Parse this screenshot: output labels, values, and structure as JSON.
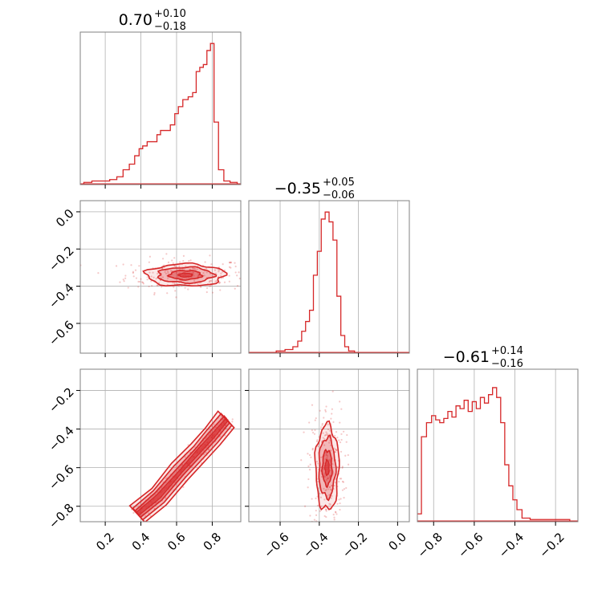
{
  "chart_data": {
    "type": "corner",
    "color": "#d62728",
    "grid": true,
    "panels": [
      {
        "id": "hist-0",
        "row": 0,
        "col": 0,
        "type": "histogram",
        "title": {
          "value": "0.70",
          "upper": "+0.10",
          "lower": "−0.18"
        },
        "xlim": [
          0.06,
          0.96
        ],
        "x_ticks": [
          0.2,
          0.4,
          0.6,
          0.8
        ],
        "x_tick_labels": [],
        "y_tick_labels": [],
        "bins": [
          [
            0.1,
            0.01
          ],
          [
            0.15,
            0.02
          ],
          [
            0.2,
            0.02
          ],
          [
            0.25,
            0.03
          ],
          [
            0.28,
            0.05
          ],
          [
            0.32,
            0.1
          ],
          [
            0.35,
            0.14
          ],
          [
            0.38,
            0.2
          ],
          [
            0.4,
            0.25
          ],
          [
            0.42,
            0.27
          ],
          [
            0.45,
            0.3
          ],
          [
            0.48,
            0.3
          ],
          [
            0.5,
            0.35
          ],
          [
            0.52,
            0.38
          ],
          [
            0.55,
            0.38
          ],
          [
            0.58,
            0.42
          ],
          [
            0.6,
            0.5
          ],
          [
            0.62,
            0.55
          ],
          [
            0.65,
            0.6
          ],
          [
            0.68,
            0.62
          ],
          [
            0.7,
            0.65
          ],
          [
            0.72,
            0.8
          ],
          [
            0.74,
            0.83
          ],
          [
            0.76,
            0.85
          ],
          [
            0.78,
            0.95
          ],
          [
            0.8,
            1.0
          ],
          [
            0.82,
            0.44
          ],
          [
            0.85,
            0.1
          ],
          [
            0.88,
            0.02
          ],
          [
            0.92,
            0.01
          ]
        ]
      },
      {
        "id": "scatter-10",
        "row": 1,
        "col": 0,
        "type": "density",
        "xlim": [
          0.06,
          0.96
        ],
        "ylim": [
          -0.76,
          0.06
        ],
        "x_ticks": [
          0.2,
          0.4,
          0.6,
          0.8
        ],
        "y_ticks": [
          0.0,
          -0.2,
          -0.4,
          -0.6
        ],
        "x_tick_labels": [],
        "y_tick_labels": [
          "0.0",
          "−0.2",
          "−0.4",
          "−0.6"
        ],
        "center": [
          0.65,
          -0.34
        ],
        "spread": [
          0.13,
          0.035
        ]
      },
      {
        "id": "hist-1",
        "row": 1,
        "col": 1,
        "type": "histogram",
        "title": {
          "value": "−0.35",
          "upper": "+0.05",
          "lower": "−0.06"
        },
        "xlim": [
          -0.76,
          0.06
        ],
        "x_ticks": [
          -0.6,
          -0.4,
          -0.2,
          0.0
        ],
        "x_tick_labels": [],
        "y_tick_labels": [],
        "bins": [
          [
            -0.6,
            0.01
          ],
          [
            -0.55,
            0.02
          ],
          [
            -0.52,
            0.04
          ],
          [
            -0.5,
            0.08
          ],
          [
            -0.48,
            0.15
          ],
          [
            -0.46,
            0.22
          ],
          [
            -0.44,
            0.3
          ],
          [
            -0.42,
            0.55
          ],
          [
            -0.4,
            0.72
          ],
          [
            -0.38,
            0.95
          ],
          [
            -0.36,
            1.0
          ],
          [
            -0.34,
            0.93
          ],
          [
            -0.32,
            0.8
          ],
          [
            -0.3,
            0.4
          ],
          [
            -0.28,
            0.12
          ],
          [
            -0.26,
            0.04
          ],
          [
            -0.24,
            0.01
          ]
        ]
      },
      {
        "id": "scatter-20",
        "row": 2,
        "col": 0,
        "type": "density",
        "xlim": [
          0.06,
          0.96
        ],
        "ylim": [
          -0.88,
          -0.09
        ],
        "x_ticks": [
          0.2,
          0.4,
          0.6,
          0.8
        ],
        "y_ticks": [
          -0.2,
          -0.4,
          -0.6,
          -0.8
        ],
        "x_tick_labels": [
          "0.2",
          "0.4",
          "0.6",
          "0.8"
        ],
        "y_tick_labels": [
          "−0.2",
          "−0.4",
          "−0.6",
          "−0.8"
        ],
        "curve": [
          [
            0.38,
            -0.84
          ],
          [
            0.5,
            -0.75
          ],
          [
            0.62,
            -0.62
          ],
          [
            0.72,
            -0.52
          ],
          [
            0.8,
            -0.44
          ],
          [
            0.88,
            -0.35
          ]
        ]
      },
      {
        "id": "scatter-21",
        "row": 2,
        "col": 1,
        "type": "density",
        "xlim": [
          -0.76,
          0.06
        ],
        "ylim": [
          -0.88,
          -0.09
        ],
        "x_ticks": [
          -0.6,
          -0.4,
          -0.2,
          0.0
        ],
        "y_ticks": [
          -0.2,
          -0.4,
          -0.6,
          -0.8
        ],
        "x_tick_labels": [
          "−0.6",
          "−0.4",
          "−0.2",
          "0.0"
        ],
        "y_tick_labels": [],
        "center": [
          -0.36,
          -0.6
        ],
        "spread": [
          0.035,
          0.13
        ]
      },
      {
        "id": "hist-2",
        "row": 2,
        "col": 2,
        "type": "histogram",
        "title": {
          "value": "−0.61",
          "upper": "+0.14",
          "lower": "−0.16"
        },
        "xlim": [
          -0.88,
          -0.09
        ],
        "x_ticks": [
          -0.8,
          -0.6,
          -0.4,
          -0.2
        ],
        "x_tick_labels": [
          "−0.8",
          "−0.6",
          "−0.4",
          "−0.2"
        ],
        "y_tick_labels": [],
        "bins": [
          [
            -0.87,
            0.05
          ],
          [
            -0.85,
            0.6
          ],
          [
            -0.82,
            0.7
          ],
          [
            -0.8,
            0.75
          ],
          [
            -0.78,
            0.72
          ],
          [
            -0.76,
            0.7
          ],
          [
            -0.74,
            0.73
          ],
          [
            -0.72,
            0.78
          ],
          [
            -0.7,
            0.74
          ],
          [
            -0.68,
            0.82
          ],
          [
            -0.66,
            0.8
          ],
          [
            -0.64,
            0.86
          ],
          [
            -0.62,
            0.78
          ],
          [
            -0.6,
            0.85
          ],
          [
            -0.58,
            0.8
          ],
          [
            -0.56,
            0.88
          ],
          [
            -0.54,
            0.84
          ],
          [
            -0.52,
            0.9
          ],
          [
            -0.5,
            0.95
          ],
          [
            -0.48,
            0.88
          ],
          [
            -0.46,
            0.7
          ],
          [
            -0.44,
            0.4
          ],
          [
            -0.42,
            0.25
          ],
          [
            -0.4,
            0.15
          ],
          [
            -0.38,
            0.08
          ],
          [
            -0.35,
            0.02
          ],
          [
            -0.3,
            0.01
          ],
          [
            -0.25,
            0.01
          ],
          [
            -0.2,
            0.01
          ],
          [
            -0.15,
            0.01
          ]
        ]
      }
    ]
  }
}
